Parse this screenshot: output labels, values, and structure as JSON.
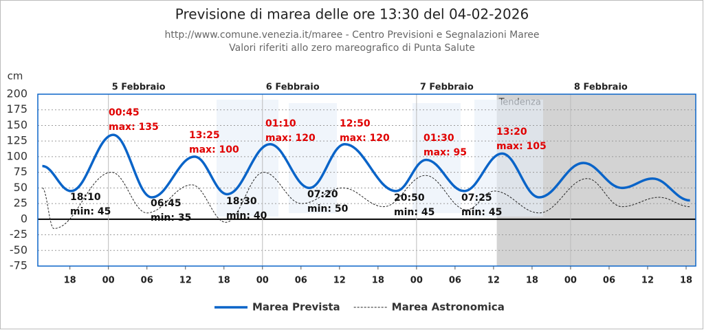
{
  "chart_data": {
    "type": "line",
    "title": "Previsione di marea delle ore 13:30 del 04-02-2026",
    "subtitle": [
      "http://www.comune.venezia.it/maree - Centro Previsioni e Segnalazioni Maree",
      "Valori riferiti allo zero mareografico di Punta Salute"
    ],
    "y_label": "cm",
    "shaded_label": "Tendenza",
    "shaded_from": 84.5,
    "xlim": [
      13,
      115.5
    ],
    "ylim": [
      -75,
      200
    ],
    "yticks": [
      -75,
      -50,
      -25,
      0,
      25,
      50,
      75,
      100,
      125,
      150,
      175,
      200
    ],
    "xticks": [
      {
        "value": 18,
        "label": "18"
      },
      {
        "value": 24,
        "label": "00"
      },
      {
        "value": 30,
        "label": "06"
      },
      {
        "value": 36,
        "label": "12"
      },
      {
        "value": 42,
        "label": "18"
      },
      {
        "value": 48,
        "label": "00"
      },
      {
        "value": 54,
        "label": "06"
      },
      {
        "value": 60,
        "label": "12"
      },
      {
        "value": 66,
        "label": "18"
      },
      {
        "value": 72,
        "label": "00"
      },
      {
        "value": 78,
        "label": "06"
      },
      {
        "value": 84,
        "label": "12"
      },
      {
        "value": 90,
        "label": "18"
      },
      {
        "value": 96,
        "label": "00"
      },
      {
        "value": 102,
        "label": "06"
      },
      {
        "value": 108,
        "label": "12"
      },
      {
        "value": 114,
        "label": "18"
      }
    ],
    "day_markers": [
      {
        "value": 24,
        "label": "5 Febbraio"
      },
      {
        "value": 48,
        "label": "6 Febbraio"
      },
      {
        "value": 72,
        "label": "7 Febbraio"
      },
      {
        "value": 96,
        "label": "8 Febbraio"
      }
    ],
    "grid": true,
    "series": [
      {
        "name": "Marea Prevista",
        "color": "#0a64c8",
        "style": "solid",
        "x": [
          13.7,
          18.17,
          24.75,
          30.75,
          37.42,
          42.5,
          49.17,
          55.33,
          60.83,
          68.83,
          73.5,
          79.42,
          85.33,
          91.1,
          98,
          104,
          108.8,
          114.6
        ],
        "values": [
          85,
          45,
          135,
          35,
          100,
          40,
          120,
          50,
          120,
          45,
          95,
          45,
          105,
          35,
          90,
          50,
          65,
          30
        ]
      },
      {
        "name": "Marea Astronomica",
        "color": "#222222",
        "style": "dashed",
        "x": [
          13.7,
          15.5,
          24.5,
          30,
          37,
          42.3,
          48.2,
          54.1,
          60.5,
          66.9,
          73.4,
          79.8,
          84.1,
          91.1,
          98.6,
          104,
          109.8,
          114.6
        ],
        "values": [
          50,
          -15,
          75,
          10,
          55,
          -5,
          75,
          25,
          50,
          20,
          70,
          15,
          45,
          10,
          65,
          20,
          35,
          20
        ]
      }
    ],
    "annotations": [
      {
        "time": "18:10",
        "label": "min: 45",
        "kind": "min"
      },
      {
        "time": "00:45",
        "label": "max: 135",
        "kind": "max"
      },
      {
        "time": "06:45",
        "label": "min: 35",
        "kind": "min"
      },
      {
        "time": "13:25",
        "label": "max: 100",
        "kind": "max"
      },
      {
        "time": "18:30",
        "label": "min: 40",
        "kind": "min"
      },
      {
        "time": "01:10",
        "label": "max: 120",
        "kind": "max"
      },
      {
        "time": "07:20",
        "label": "min: 50",
        "kind": "min"
      },
      {
        "time": "12:50",
        "label": "max: 120",
        "kind": "max"
      },
      {
        "time": "20:50",
        "label": "min: 45",
        "kind": "min"
      },
      {
        "time": "01:30",
        "label": "max: 95",
        "kind": "max"
      },
      {
        "time": "07:25",
        "label": "min: 45",
        "kind": "min"
      },
      {
        "time": "13:20",
        "label": "max: 105",
        "kind": "max"
      }
    ]
  }
}
